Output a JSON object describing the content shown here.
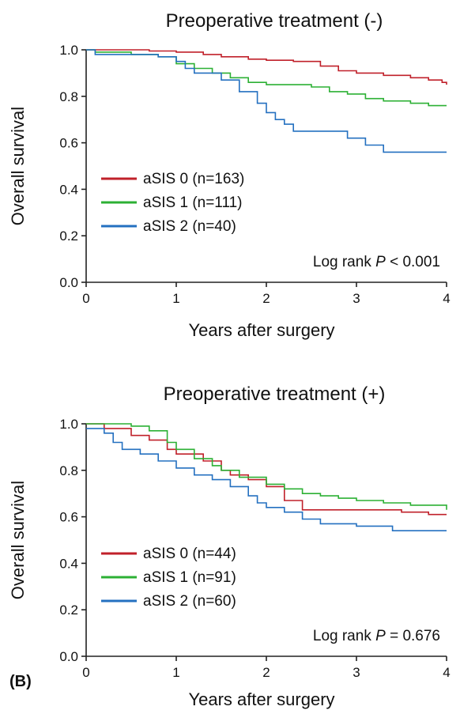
{
  "figure": {
    "panel_letter": "(B)"
  },
  "chart_data": [
    {
      "type": "line",
      "title": "Preoperative treatment (-)",
      "xlabel": "Years after surgery",
      "ylabel": "Overall survival",
      "xlim": [
        0,
        4
      ],
      "ylim": [
        0.0,
        1.0
      ],
      "xticks": [
        "0",
        "1",
        "2",
        "3",
        "4"
      ],
      "yticks": [
        "0.0",
        "0.2",
        "0.4",
        "0.6",
        "0.8",
        "1.0"
      ],
      "legend_position": "lower-left",
      "annotation": {
        "prefix": "Log rank ",
        "symbol": "P",
        "suffix": " < 0.001"
      },
      "series": [
        {
          "name": "aSIS 0 (n=163)",
          "color": "#c0202a",
          "points": [
            [
              0,
              1.0
            ],
            [
              0.4,
              1.0
            ],
            [
              0.7,
              0.995
            ],
            [
              1.0,
              0.99
            ],
            [
              1.3,
              0.98
            ],
            [
              1.5,
              0.97
            ],
            [
              1.8,
              0.96
            ],
            [
              2.0,
              0.955
            ],
            [
              2.3,
              0.95
            ],
            [
              2.6,
              0.93
            ],
            [
              2.8,
              0.91
            ],
            [
              3.0,
              0.9
            ],
            [
              3.3,
              0.89
            ],
            [
              3.6,
              0.88
            ],
            [
              3.8,
              0.87
            ],
            [
              3.95,
              0.86
            ],
            [
              4.0,
              0.85
            ]
          ]
        },
        {
          "name": "aSIS 1 (n=111)",
          "color": "#2cb034",
          "points": [
            [
              0,
              1.0
            ],
            [
              0.1,
              0.99
            ],
            [
              0.5,
              0.98
            ],
            [
              0.8,
              0.97
            ],
            [
              1.0,
              0.94
            ],
            [
              1.2,
              0.92
            ],
            [
              1.4,
              0.9
            ],
            [
              1.6,
              0.88
            ],
            [
              1.8,
              0.86
            ],
            [
              2.0,
              0.85
            ],
            [
              2.3,
              0.85
            ],
            [
              2.5,
              0.84
            ],
            [
              2.7,
              0.82
            ],
            [
              2.9,
              0.81
            ],
            [
              3.1,
              0.79
            ],
            [
              3.3,
              0.78
            ],
            [
              3.6,
              0.77
            ],
            [
              3.8,
              0.76
            ],
            [
              4.0,
              0.76
            ]
          ]
        },
        {
          "name": "aSIS 2 (n=40)",
          "color": "#2470c0",
          "points": [
            [
              0,
              1.0
            ],
            [
              0.1,
              0.98
            ],
            [
              0.8,
              0.97
            ],
            [
              1.0,
              0.95
            ],
            [
              1.1,
              0.92
            ],
            [
              1.2,
              0.9
            ],
            [
              1.5,
              0.87
            ],
            [
              1.7,
              0.82
            ],
            [
              1.9,
              0.77
            ],
            [
              2.0,
              0.73
            ],
            [
              2.1,
              0.7
            ],
            [
              2.2,
              0.68
            ],
            [
              2.3,
              0.65
            ],
            [
              2.7,
              0.65
            ],
            [
              2.9,
              0.62
            ],
            [
              3.1,
              0.59
            ],
            [
              3.3,
              0.56
            ],
            [
              4.0,
              0.56
            ]
          ]
        }
      ]
    },
    {
      "type": "line",
      "title": "Preoperative treatment (+)",
      "xlabel": "Years after surgery",
      "ylabel": "Overall survival",
      "xlim": [
        0,
        4
      ],
      "ylim": [
        0.0,
        1.0
      ],
      "xticks": [
        "0",
        "1",
        "2",
        "3",
        "4"
      ],
      "yticks": [
        "0.0",
        "0.2",
        "0.4",
        "0.6",
        "0.8",
        "1.0"
      ],
      "legend_position": "lower-left",
      "annotation": {
        "prefix": "Log rank ",
        "symbol": "P",
        "suffix": " = 0.676"
      },
      "series": [
        {
          "name": "aSIS 0 (n=44)",
          "color": "#c0202a",
          "points": [
            [
              0,
              1.0
            ],
            [
              0.2,
              0.98
            ],
            [
              0.5,
              0.95
            ],
            [
              0.7,
              0.93
            ],
            [
              0.9,
              0.89
            ],
            [
              1.0,
              0.87
            ],
            [
              1.3,
              0.84
            ],
            [
              1.5,
              0.8
            ],
            [
              1.6,
              0.78
            ],
            [
              1.8,
              0.76
            ],
            [
              2.0,
              0.73
            ],
            [
              2.2,
              0.67
            ],
            [
              2.4,
              0.63
            ],
            [
              3.0,
              0.63
            ],
            [
              3.5,
              0.62
            ],
            [
              3.8,
              0.61
            ],
            [
              4.0,
              0.61
            ]
          ]
        },
        {
          "name": "aSIS 1 (n=91)",
          "color": "#2cb034",
          "points": [
            [
              0,
              1.0
            ],
            [
              0.5,
              0.99
            ],
            [
              0.7,
              0.97
            ],
            [
              0.9,
              0.92
            ],
            [
              1.0,
              0.89
            ],
            [
              1.2,
              0.85
            ],
            [
              1.4,
              0.82
            ],
            [
              1.5,
              0.8
            ],
            [
              1.7,
              0.77
            ],
            [
              2.0,
              0.74
            ],
            [
              2.2,
              0.72
            ],
            [
              2.4,
              0.7
            ],
            [
              2.6,
              0.69
            ],
            [
              2.8,
              0.68
            ],
            [
              3.0,
              0.67
            ],
            [
              3.3,
              0.66
            ],
            [
              3.6,
              0.65
            ],
            [
              4.0,
              0.63
            ]
          ]
        },
        {
          "name": "aSIS 2 (n=60)",
          "color": "#2470c0",
          "points": [
            [
              0,
              0.98
            ],
            [
              0.2,
              0.96
            ],
            [
              0.3,
              0.92
            ],
            [
              0.4,
              0.89
            ],
            [
              0.6,
              0.87
            ],
            [
              0.8,
              0.84
            ],
            [
              1.0,
              0.81
            ],
            [
              1.2,
              0.78
            ],
            [
              1.4,
              0.76
            ],
            [
              1.6,
              0.73
            ],
            [
              1.8,
              0.69
            ],
            [
              1.9,
              0.66
            ],
            [
              2.0,
              0.64
            ],
            [
              2.2,
              0.62
            ],
            [
              2.4,
              0.59
            ],
            [
              2.6,
              0.57
            ],
            [
              3.0,
              0.56
            ],
            [
              3.4,
              0.54
            ],
            [
              4.0,
              0.54
            ]
          ]
        }
      ]
    }
  ]
}
